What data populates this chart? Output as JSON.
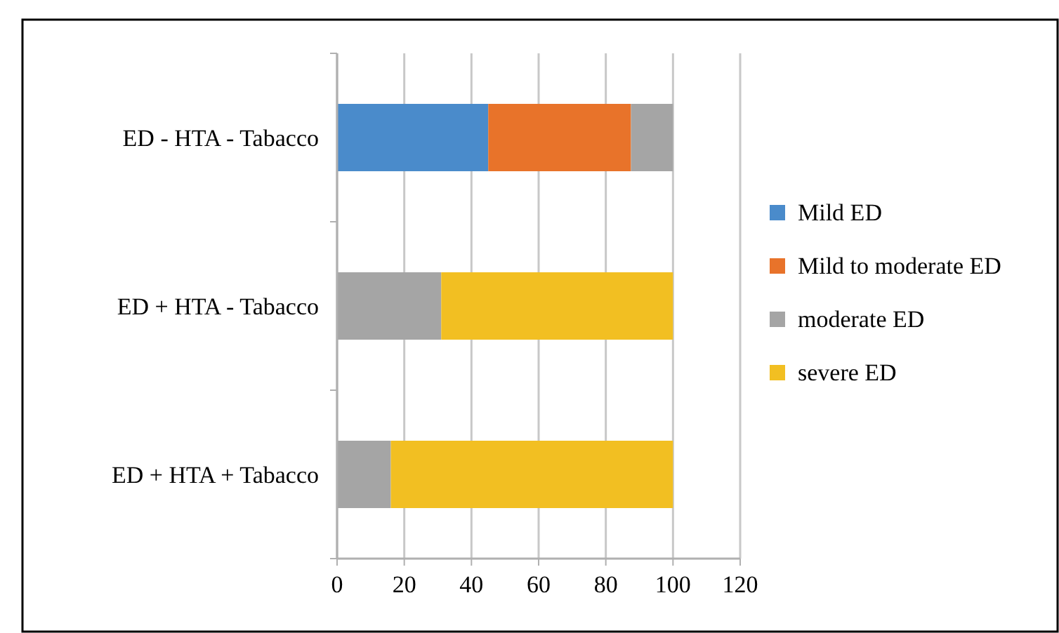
{
  "chart_data": {
    "type": "bar",
    "orientation": "horizontal",
    "stacked": true,
    "categories": [
      "ED - HTA - Tabacco",
      "ED + HTA - Tabacco",
      "ED + HTA + Tabacco"
    ],
    "series": [
      {
        "name": "Mild ED",
        "color": "#4a8bcb",
        "values": [
          45,
          null,
          null
        ]
      },
      {
        "name": "Mild to moderate ED",
        "color": "#e8732a",
        "values": [
          42.5,
          null,
          null
        ]
      },
      {
        "name": "moderate ED",
        "color": "#a5a5a5",
        "values": [
          12.5,
          31,
          16
        ]
      },
      {
        "name": "severe ED",
        "color": "#f2bf22",
        "values": [
          null,
          69,
          84
        ]
      }
    ],
    "xlim": [
      0,
      120
    ],
    "xticks": [
      0,
      20,
      40,
      60,
      80,
      100,
      120
    ],
    "grid": "x",
    "legend": "right"
  }
}
